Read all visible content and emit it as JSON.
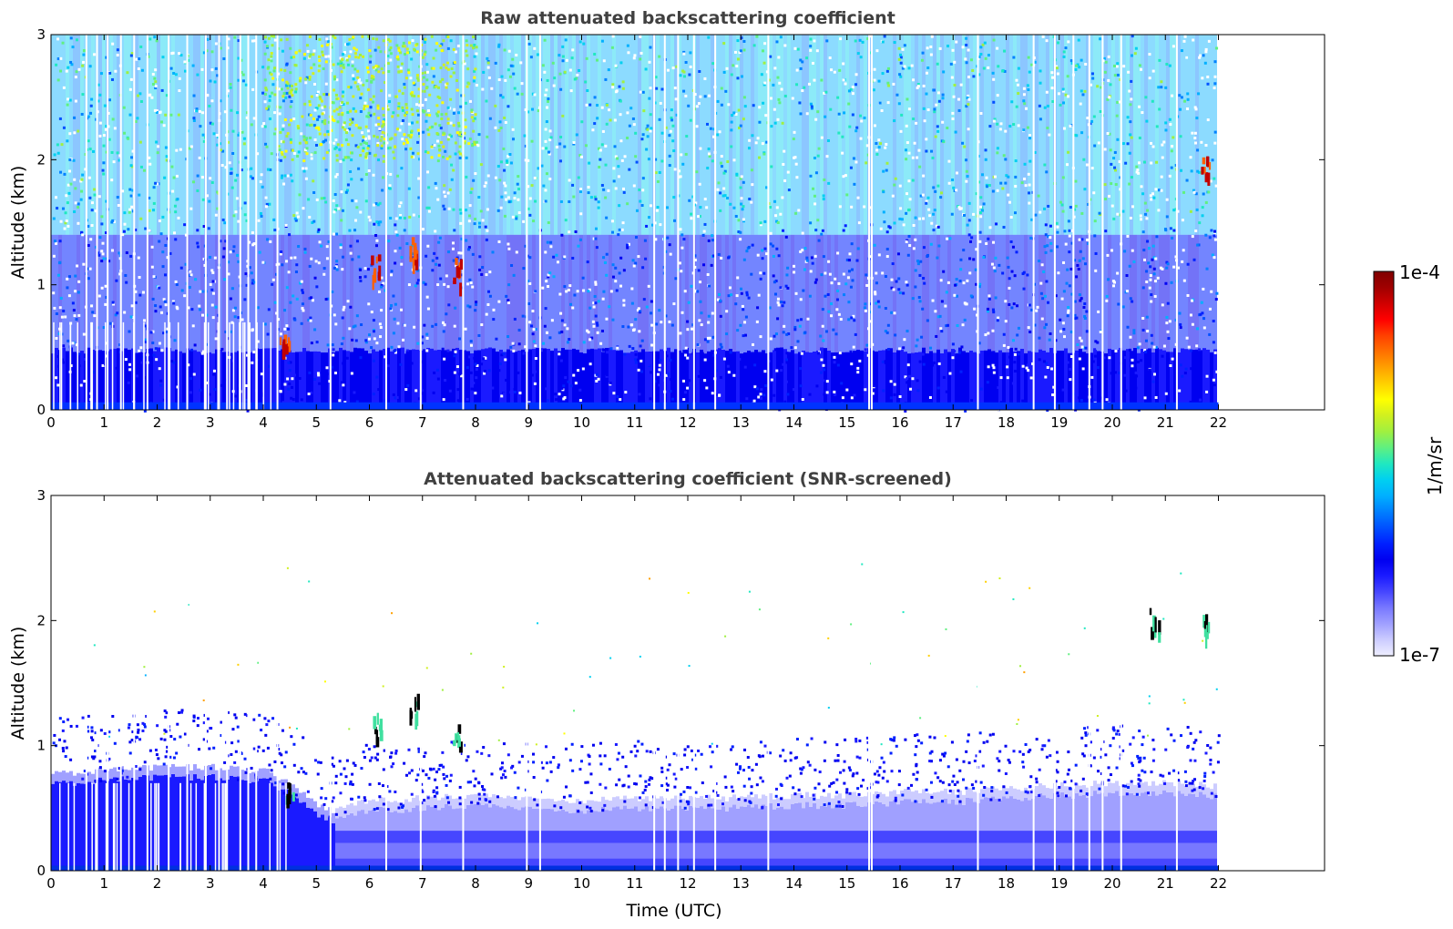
{
  "figure": {
    "xlabel": "Time (UTC)"
  },
  "colorbar": {
    "label": "1/m/sr",
    "max_label": "1e-4",
    "min_label": "1e-7",
    "colors": [
      "#eeeeff",
      "#ccccff",
      "#a0a0ff",
      "#7878ff",
      "#4646ff",
      "#1a1aff",
      "#0000f0",
      "#0020ff",
      "#0050ff",
      "#0080ff",
      "#00b0ff",
      "#00d0f0",
      "#20e8c0",
      "#60f080",
      "#a0f040",
      "#d0f020",
      "#ffff00",
      "#ffd000",
      "#ffa000",
      "#ff7000",
      "#ff4000",
      "#ff0000",
      "#d00000",
      "#a00000",
      "#800000"
    ]
  },
  "chart_data": [
    {
      "type": "heatmap",
      "title": "Raw attenuated backscattering coefficient",
      "ylabel": "Altitude (km)",
      "xlim": [
        0,
        24
      ],
      "ylim": [
        0,
        3
      ],
      "x_ticks": [
        0,
        1,
        2,
        3,
        4,
        5,
        6,
        7,
        8,
        9,
        10,
        11,
        12,
        13,
        14,
        15,
        16,
        17,
        18,
        19,
        20,
        21,
        22
      ],
      "y_ticks": [
        0,
        1,
        2,
        3
      ],
      "data_end_time": 22,
      "data_gaps_utc": [
        0.65,
        0.85,
        1.05,
        1.3,
        1.55,
        1.8,
        2.2,
        2.55,
        2.9,
        3.15,
        3.3,
        3.55,
        3.7,
        3.85,
        4.25,
        5.25,
        6.3,
        6.95,
        7.75,
        8.95,
        9.2,
        11.35,
        11.55,
        11.8,
        12.1,
        12.5,
        13.5,
        15.4,
        15.45,
        17.45,
        18.5,
        18.9,
        19.25,
        19.55,
        19.8,
        20.15,
        21.2
      ],
      "features": [
        {
          "name": "low aerosol layer",
          "t_start": 0,
          "t_end": 22,
          "alt_top_km": 0.45,
          "level": "blue"
        },
        {
          "name": "cloud",
          "t_center": 4.4,
          "alt_km": 0.6,
          "level": "red"
        },
        {
          "name": "cloud",
          "t_center": 6.1,
          "alt_km": 1.15,
          "level": "red"
        },
        {
          "name": "cloud",
          "t_center": 6.85,
          "alt_km": 1.3,
          "level": "red"
        },
        {
          "name": "cloud",
          "t_center": 7.65,
          "alt_km": 1.1,
          "level": "red"
        },
        {
          "name": "cloud",
          "t_center": 21.75,
          "alt_km": 1.9,
          "level": "red"
        }
      ]
    },
    {
      "type": "heatmap",
      "title": "Attenuated backscattering coefficient (SNR-screened)",
      "ylabel": "Altitude (km)",
      "xlabel": "Time (UTC)",
      "xlim": [
        0,
        24
      ],
      "ylim": [
        0,
        3
      ],
      "x_ticks": [
        0,
        1,
        2,
        3,
        4,
        5,
        6,
        7,
        8,
        9,
        10,
        11,
        12,
        13,
        14,
        15,
        16,
        17,
        18,
        19,
        20,
        21,
        22
      ],
      "y_ticks": [
        0,
        1,
        2,
        3
      ],
      "data_end_time": 22,
      "boundary_layer_top_km": [
        [
          0,
          0.7
        ],
        [
          1,
          0.72
        ],
        [
          2,
          0.75
        ],
        [
          3,
          0.75
        ],
        [
          4,
          0.72
        ],
        [
          4.5,
          0.6
        ],
        [
          5,
          0.45
        ],
        [
          5.3,
          0.4
        ],
        [
          6,
          0.48
        ],
        [
          7,
          0.5
        ],
        [
          8,
          0.52
        ],
        [
          9,
          0.5
        ],
        [
          10,
          0.48
        ],
        [
          11,
          0.5
        ],
        [
          12,
          0.5
        ],
        [
          13,
          0.5
        ],
        [
          14,
          0.52
        ],
        [
          15,
          0.52
        ],
        [
          16,
          0.55
        ],
        [
          17,
          0.55
        ],
        [
          18,
          0.58
        ],
        [
          19,
          0.6
        ],
        [
          20,
          0.62
        ],
        [
          21,
          0.62
        ],
        [
          22,
          0.6
        ]
      ],
      "features": [
        {
          "name": "cloud",
          "t_center": 4.5,
          "alt_km": 0.65,
          "level": "black"
        },
        {
          "name": "cloud",
          "t_center": 6.15,
          "alt_km": 1.15,
          "level": "black"
        },
        {
          "name": "cloud",
          "t_center": 6.85,
          "alt_km": 1.32,
          "level": "black"
        },
        {
          "name": "cloud",
          "t_center": 7.65,
          "alt_km": 1.1,
          "level": "black"
        },
        {
          "name": "cloud",
          "t_center": 20.8,
          "alt_km": 1.97,
          "level": "black"
        },
        {
          "name": "cloud",
          "t_center": 21.75,
          "alt_km": 1.92,
          "level": "black"
        }
      ]
    }
  ]
}
